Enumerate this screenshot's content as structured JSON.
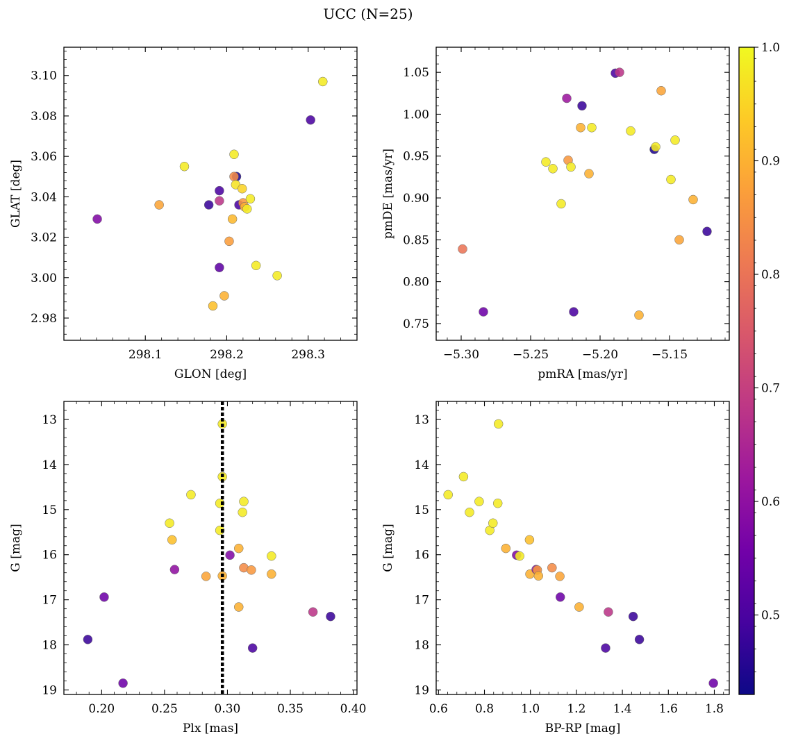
{
  "figure": {
    "title": "UCC (N=25)"
  },
  "colormap": {
    "name": "plasma",
    "min": 0.43,
    "max": 1.0,
    "ticks": [
      0.5,
      0.6,
      0.7,
      0.8,
      0.9,
      1.0
    ],
    "tick_labels": [
      "0.5",
      "0.6",
      "0.7",
      "0.8",
      "0.9",
      "1.0"
    ],
    "stops": [
      "#0d0887",
      "#46039f",
      "#7201a8",
      "#9c179e",
      "#bd3786",
      "#d8576b",
      "#ed7953",
      "#fb9f3a",
      "#fdca26",
      "#f0f921"
    ]
  },
  "chart_data": [
    {
      "type": "scatter",
      "xlabel": "GLON [deg]",
      "ylabel": "GLAT [deg]",
      "xlim": [
        298.0,
        298.36
      ],
      "ylim": [
        2.969,
        3.114
      ],
      "xticks": [
        298.1,
        298.2,
        298.3
      ],
      "xtick_labels": [
        "298.1",
        "298.2",
        "298.3"
      ],
      "yticks": [
        2.98,
        3.0,
        3.02,
        3.04,
        3.06,
        3.08,
        3.1
      ],
      "ytick_labels": [
        "2.98",
        "3.00",
        "3.02",
        "3.04",
        "3.06",
        "3.08",
        "3.10"
      ],
      "invert_y": false,
      "points": [
        {
          "x": 298.041,
          "y": 3.029,
          "c": 0.58
        },
        {
          "x": 298.117,
          "y": 3.036,
          "c": 0.88
        },
        {
          "x": 298.148,
          "y": 3.055,
          "c": 0.98
        },
        {
          "x": 298.178,
          "y": 3.036,
          "c": 0.48
        },
        {
          "x": 298.191,
          "y": 3.043,
          "c": 0.5
        },
        {
          "x": 298.191,
          "y": 3.038,
          "c": 0.68
        },
        {
          "x": 298.191,
          "y": 3.005,
          "c": 0.53
        },
        {
          "x": 298.183,
          "y": 2.986,
          "c": 0.92
        },
        {
          "x": 298.197,
          "y": 2.991,
          "c": 0.9
        },
        {
          "x": 298.203,
          "y": 3.018,
          "c": 0.87
        },
        {
          "x": 298.207,
          "y": 3.029,
          "c": 0.91
        },
        {
          "x": 298.209,
          "y": 3.061,
          "c": 0.98
        },
        {
          "x": 298.212,
          "y": 3.05,
          "c": 0.45
        },
        {
          "x": 298.209,
          "y": 3.05,
          "c": 0.84
        },
        {
          "x": 298.211,
          "y": 3.046,
          "c": 0.97
        },
        {
          "x": 298.215,
          "y": 3.036,
          "c": 0.5
        },
        {
          "x": 298.219,
          "y": 3.044,
          "c": 0.95
        },
        {
          "x": 298.22,
          "y": 3.037,
          "c": 0.86
        },
        {
          "x": 298.222,
          "y": 3.035,
          "c": 0.9
        },
        {
          "x": 298.225,
          "y": 3.034,
          "c": 0.98
        },
        {
          "x": 298.229,
          "y": 3.039,
          "c": 0.98
        },
        {
          "x": 298.236,
          "y": 3.006,
          "c": 0.98
        },
        {
          "x": 298.262,
          "y": 3.001,
          "c": 0.98
        },
        {
          "x": 298.303,
          "y": 3.078,
          "c": 0.5
        },
        {
          "x": 298.318,
          "y": 3.097,
          "c": 0.98
        }
      ]
    },
    {
      "type": "scatter",
      "xlabel": "pmRA [mas/yr]",
      "ylabel": "pmDE [mas/yr]",
      "xlim": [
        -5.318,
        -5.107
      ],
      "ylim": [
        0.73,
        1.08
      ],
      "xticks": [
        -5.3,
        -5.25,
        -5.2,
        -5.15
      ],
      "xtick_labels": [
        "−5.30",
        "−5.25",
        "−5.20",
        "−5.15"
      ],
      "yticks": [
        0.75,
        0.8,
        0.85,
        0.9,
        0.95,
        1.0,
        1.05
      ],
      "ytick_labels": [
        "0.75",
        "0.80",
        "0.85",
        "0.90",
        "0.95",
        "1.00",
        "1.05"
      ],
      "invert_y": false,
      "points": [
        {
          "x": -5.299,
          "y": 0.839,
          "c": 0.8
        },
        {
          "x": -5.284,
          "y": 0.764,
          "c": 0.55
        },
        {
          "x": -5.239,
          "y": 0.943,
          "c": 0.98
        },
        {
          "x": -5.234,
          "y": 0.935,
          "c": 0.98
        },
        {
          "x": -5.228,
          "y": 0.893,
          "c": 0.98
        },
        {
          "x": -5.224,
          "y": 1.019,
          "c": 0.62
        },
        {
          "x": -5.223,
          "y": 0.945,
          "c": 0.86
        },
        {
          "x": -5.221,
          "y": 0.937,
          "c": 0.98
        },
        {
          "x": -5.219,
          "y": 0.764,
          "c": 0.5
        },
        {
          "x": -5.213,
          "y": 1.01,
          "c": 0.48
        },
        {
          "x": -5.214,
          "y": 0.984,
          "c": 0.9
        },
        {
          "x": -5.208,
          "y": 0.929,
          "c": 0.9
        },
        {
          "x": -5.206,
          "y": 0.984,
          "c": 0.98
        },
        {
          "x": -5.189,
          "y": 1.049,
          "c": 0.5
        },
        {
          "x": -5.186,
          "y": 1.05,
          "c": 0.68
        },
        {
          "x": -5.178,
          "y": 0.98,
          "c": 0.98
        },
        {
          "x": -5.172,
          "y": 0.76,
          "c": 0.9
        },
        {
          "x": -5.161,
          "y": 0.958,
          "c": 0.45
        },
        {
          "x": -5.16,
          "y": 0.961,
          "c": 0.98
        },
        {
          "x": -5.156,
          "y": 1.028,
          "c": 0.88
        },
        {
          "x": -5.149,
          "y": 0.922,
          "c": 0.98
        },
        {
          "x": -5.146,
          "y": 0.969,
          "c": 0.98
        },
        {
          "x": -5.143,
          "y": 0.85,
          "c": 0.88
        },
        {
          "x": -5.133,
          "y": 0.898,
          "c": 0.9
        },
        {
          "x": -5.123,
          "y": 0.86,
          "c": 0.48
        }
      ]
    },
    {
      "type": "scatter",
      "xlabel": "Plx [mas]",
      "ylabel": "G [mag]",
      "xlim": [
        0.17,
        0.403
      ],
      "ylim": [
        12.6,
        19.1
      ],
      "xticks": [
        0.2,
        0.25,
        0.3,
        0.35,
        0.4
      ],
      "xtick_labels": [
        "0.20",
        "0.25",
        "0.30",
        "0.35",
        "0.40"
      ],
      "yticks": [
        13,
        14,
        15,
        16,
        17,
        18,
        19
      ],
      "ytick_labels": [
        "13",
        "14",
        "15",
        "16",
        "17",
        "18",
        "19"
      ],
      "invert_y": true,
      "vline": 0.296,
      "points": [
        {
          "x": 0.189,
          "y": 17.88,
          "c": 0.48
        },
        {
          "x": 0.202,
          "y": 16.94,
          "c": 0.55
        },
        {
          "x": 0.217,
          "y": 18.85,
          "c": 0.55
        },
        {
          "x": 0.254,
          "y": 15.3,
          "c": 0.98
        },
        {
          "x": 0.256,
          "y": 15.67,
          "c": 0.92
        },
        {
          "x": 0.258,
          "y": 16.33,
          "c": 0.6
        },
        {
          "x": 0.271,
          "y": 14.67,
          "c": 0.98
        },
        {
          "x": 0.283,
          "y": 16.48,
          "c": 0.88
        },
        {
          "x": 0.294,
          "y": 14.86,
          "c": 0.98
        },
        {
          "x": 0.294,
          "y": 15.46,
          "c": 0.98
        },
        {
          "x": 0.296,
          "y": 13.1,
          "c": 0.98
        },
        {
          "x": 0.296,
          "y": 14.27,
          "c": 0.98
        },
        {
          "x": 0.296,
          "y": 16.47,
          "c": 0.9
        },
        {
          "x": 0.302,
          "y": 16.01,
          "c": 0.58
        },
        {
          "x": 0.309,
          "y": 15.86,
          "c": 0.9
        },
        {
          "x": 0.309,
          "y": 17.16,
          "c": 0.9
        },
        {
          "x": 0.312,
          "y": 15.06,
          "c": 0.98
        },
        {
          "x": 0.313,
          "y": 14.82,
          "c": 0.98
        },
        {
          "x": 0.313,
          "y": 16.29,
          "c": 0.84
        },
        {
          "x": 0.319,
          "y": 16.34,
          "c": 0.86
        },
        {
          "x": 0.32,
          "y": 18.07,
          "c": 0.5
        },
        {
          "x": 0.335,
          "y": 16.03,
          "c": 0.98
        },
        {
          "x": 0.335,
          "y": 16.43,
          "c": 0.9
        },
        {
          "x": 0.368,
          "y": 17.27,
          "c": 0.68
        },
        {
          "x": 0.382,
          "y": 17.37,
          "c": 0.48
        }
      ]
    },
    {
      "type": "scatter",
      "xlabel": "BP-RP [mag]",
      "ylabel": "G [mag]",
      "xlim": [
        0.59,
        1.865
      ],
      "ylim": [
        12.6,
        19.1
      ],
      "xticks": [
        0.6,
        0.8,
        1.0,
        1.2,
        1.4,
        1.6,
        1.8
      ],
      "xtick_labels": [
        "0.6",
        "0.8",
        "1.0",
        "1.2",
        "1.4",
        "1.6",
        "1.8"
      ],
      "yticks": [
        13,
        14,
        15,
        16,
        17,
        18,
        19
      ],
      "ytick_labels": [
        "13",
        "14",
        "15",
        "16",
        "17",
        "18",
        "19"
      ],
      "invert_y": true,
      "points": [
        {
          "x": 0.642,
          "y": 14.67,
          "c": 0.98
        },
        {
          "x": 0.709,
          "y": 14.27,
          "c": 0.98
        },
        {
          "x": 0.735,
          "y": 15.06,
          "c": 0.98
        },
        {
          "x": 0.777,
          "y": 14.82,
          "c": 0.98
        },
        {
          "x": 0.823,
          "y": 15.46,
          "c": 0.98
        },
        {
          "x": 0.837,
          "y": 15.3,
          "c": 0.98
        },
        {
          "x": 0.858,
          "y": 14.86,
          "c": 0.98
        },
        {
          "x": 0.861,
          "y": 13.1,
          "c": 0.98
        },
        {
          "x": 0.893,
          "y": 15.86,
          "c": 0.9
        },
        {
          "x": 0.94,
          "y": 16.01,
          "c": 0.58
        },
        {
          "x": 0.953,
          "y": 16.03,
          "c": 0.98
        },
        {
          "x": 0.996,
          "y": 15.67,
          "c": 0.92
        },
        {
          "x": 0.998,
          "y": 16.43,
          "c": 0.9
        },
        {
          "x": 1.025,
          "y": 16.33,
          "c": 0.6
        },
        {
          "x": 1.03,
          "y": 16.34,
          "c": 0.86
        },
        {
          "x": 1.035,
          "y": 16.47,
          "c": 0.9
        },
        {
          "x": 1.094,
          "y": 16.29,
          "c": 0.84
        },
        {
          "x": 1.128,
          "y": 16.48,
          "c": 0.88
        },
        {
          "x": 1.13,
          "y": 16.94,
          "c": 0.55
        },
        {
          "x": 1.212,
          "y": 17.16,
          "c": 0.9
        },
        {
          "x": 1.327,
          "y": 18.07,
          "c": 0.5
        },
        {
          "x": 1.339,
          "y": 17.27,
          "c": 0.68
        },
        {
          "x": 1.447,
          "y": 17.37,
          "c": 0.48
        },
        {
          "x": 1.474,
          "y": 17.88,
          "c": 0.48
        },
        {
          "x": 1.796,
          "y": 18.85,
          "c": 0.55
        }
      ]
    }
  ]
}
